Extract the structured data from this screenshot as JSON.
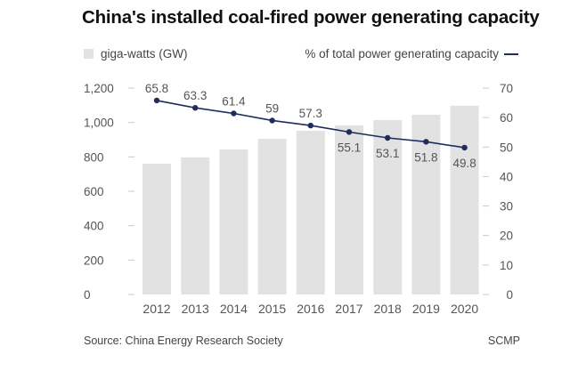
{
  "chart_data": {
    "type": "bar",
    "title": "China's installed coal-fired power generating capacity",
    "categories": [
      "2012",
      "2013",
      "2014",
      "2015",
      "2016",
      "2017",
      "2018",
      "2019",
      "2020"
    ],
    "series": [
      {
        "name": "giga-watts (GW)",
        "type": "bar",
        "axis": "left",
        "color": "#e2e2e2",
        "values": [
          760,
          797,
          843,
          905,
          952,
          983,
          1014,
          1045,
          1097
        ]
      },
      {
        "name": "% of total power generating capacity",
        "type": "line",
        "axis": "right",
        "color": "#1f2d5c",
        "values": [
          65.8,
          63.3,
          61.4,
          59,
          57.3,
          55.1,
          53.1,
          51.8,
          49.8
        ],
        "labels": [
          "65.8",
          "63.3",
          "61.4",
          "59",
          "57.3",
          "55.1",
          "53.1",
          "51.8",
          "49.8"
        ],
        "label_position": [
          "above",
          "above",
          "above",
          "above",
          "above",
          "below",
          "below",
          "below",
          "below"
        ]
      }
    ],
    "left_axis": {
      "ylim": [
        0,
        1200
      ],
      "ticks": [
        0,
        200,
        400,
        600,
        800,
        1000,
        1200
      ],
      "tick_labels": [
        "0",
        "200",
        "400",
        "600",
        "800",
        "1,000",
        "1,200"
      ]
    },
    "right_axis": {
      "ylim": [
        0,
        70
      ],
      "ticks": [
        0,
        10,
        20,
        30,
        40,
        50,
        60,
        70
      ],
      "tick_labels": [
        "0",
        "10",
        "20",
        "30",
        "40",
        "50",
        "60",
        "70"
      ]
    },
    "xlabel": "",
    "ylabel": "",
    "grid": false,
    "legend": {
      "left_entry": "giga-watts (GW)",
      "right_entry": "% of total power generating capacity",
      "placement": "top"
    }
  },
  "footer": {
    "source": "Source: China Energy Research Society",
    "credit": "SCMP"
  }
}
